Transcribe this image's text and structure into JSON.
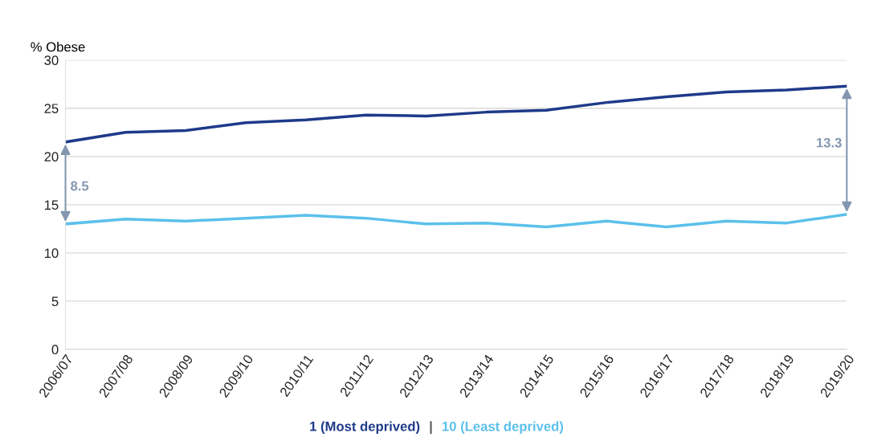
{
  "chart_data": {
    "type": "line",
    "ylabel": "% Obese",
    "categories": [
      "2006/07",
      "2007/08",
      "2008/09",
      "2009/10",
      "2010/11",
      "2011/12",
      "2012/13",
      "2013/14",
      "2014/15",
      "2015/16",
      "2016/17",
      "2017/18",
      "2018/19",
      "2019/20"
    ],
    "series": [
      {
        "name": "1 (Most deprived)",
        "color": "#1f3a8a",
        "values": [
          21.5,
          22.5,
          22.7,
          23.5,
          23.8,
          24.3,
          24.2,
          24.6,
          24.8,
          25.6,
          26.2,
          26.7,
          26.9,
          27.3
        ]
      },
      {
        "name": "10 (Least deprived)",
        "color": "#5bc0eb",
        "values": [
          13.0,
          13.5,
          13.3,
          13.6,
          13.9,
          13.6,
          13.0,
          13.1,
          12.7,
          13.3,
          12.7,
          13.3,
          13.1,
          14.0
        ]
      }
    ],
    "ylim": [
      0,
      30
    ],
    "yticks": [
      0,
      5,
      10,
      15,
      20,
      25,
      30
    ],
    "grid": "y",
    "legend": "bottom",
    "marker": "none",
    "line_style": "solid",
    "annotations": [
      "8.5",
      "13.3",
      "|"
    ]
  }
}
